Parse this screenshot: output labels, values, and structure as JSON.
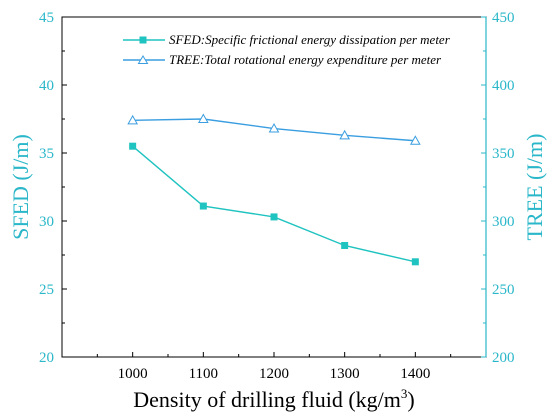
{
  "colors": {
    "left_axis": "#2ab7c9",
    "right_axis": "#2ab7c9",
    "series_sfed": "#1fc3c0",
    "series_tree": "#3a9ee0",
    "frame": "#000000"
  },
  "chart_data": {
    "type": "line",
    "title": "",
    "xlabel": "Density of drilling fluid (kg/m",
    "xlabel_superscript": "3",
    "xlabel_suffix": ")",
    "ylabel_left": "SFED (J/m)",
    "ylabel_right": "TREE (J/m)",
    "x": [
      1000,
      1100,
      1200,
      1300,
      1400
    ],
    "x_ticks": [
      "1000",
      "1100",
      "1200",
      "1300",
      "1400"
    ],
    "xlim": [
      900,
      1500
    ],
    "ylim_left": [
      20,
      45
    ],
    "ylim_right": [
      200,
      450
    ],
    "y_ticks_left": [
      "20",
      "25",
      "30",
      "35",
      "40",
      "45"
    ],
    "y_ticks_right": [
      "200",
      "250",
      "300",
      "350",
      "400",
      "450"
    ],
    "legend_position": "top-right",
    "series": [
      {
        "name": "SFED:Specific frictional energy dissipation per meter",
        "axis": "left",
        "marker": "filled-square",
        "values": [
          35.5,
          31.1,
          30.3,
          28.2,
          27.0
        ]
      },
      {
        "name": "TREE:Total rotational energy expenditure per meter",
        "axis": "right",
        "marker": "open-triangle",
        "values": [
          374,
          375,
          368,
          363,
          359
        ]
      }
    ]
  }
}
